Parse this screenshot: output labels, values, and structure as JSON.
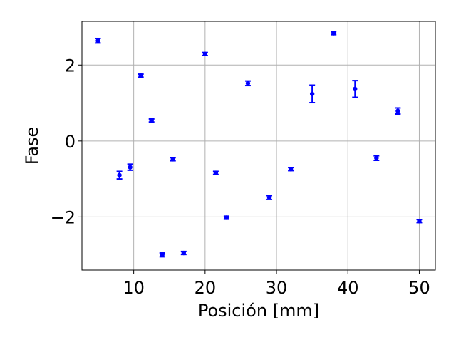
{
  "chart_data": {
    "type": "scatter",
    "xlabel": "Posición [mm]",
    "ylabel": "Fase",
    "xlim": [
      2.75,
      52.25
    ],
    "ylim": [
      -3.4,
      3.15
    ],
    "xticks": [
      10,
      20,
      30,
      40,
      50
    ],
    "xtick_labels": [
      "10",
      "20",
      "30",
      "40",
      "50"
    ],
    "yticks": [
      -2,
      0,
      2
    ],
    "ytick_labels": [
      "−2",
      "0",
      "2"
    ],
    "grid": true,
    "marker_color": "#0000ff",
    "points": [
      {
        "x": 5,
        "y": 2.64,
        "err": 0.06
      },
      {
        "x": 8,
        "y": -0.9,
        "err": 0.1
      },
      {
        "x": 9.5,
        "y": -0.69,
        "err": 0.08
      },
      {
        "x": 11,
        "y": 1.72,
        "err": 0.04
      },
      {
        "x": 12.5,
        "y": 0.54,
        "err": 0.04
      },
      {
        "x": 14,
        "y": -3.0,
        "err": 0.05
      },
      {
        "x": 15.5,
        "y": -0.48,
        "err": 0.04
      },
      {
        "x": 17,
        "y": -2.95,
        "err": 0.04
      },
      {
        "x": 20,
        "y": 2.29,
        "err": 0.04
      },
      {
        "x": 21.5,
        "y": -0.84,
        "err": 0.04
      },
      {
        "x": 23,
        "y": -2.02,
        "err": 0.04
      },
      {
        "x": 26,
        "y": 1.52,
        "err": 0.06
      },
      {
        "x": 29,
        "y": -1.49,
        "err": 0.05
      },
      {
        "x": 32,
        "y": -0.74,
        "err": 0.04
      },
      {
        "x": 35,
        "y": 1.24,
        "err": 0.23
      },
      {
        "x": 38,
        "y": 2.84,
        "err": 0.04
      },
      {
        "x": 41,
        "y": 1.37,
        "err": 0.22
      },
      {
        "x": 44,
        "y": -0.45,
        "err": 0.06
      },
      {
        "x": 47,
        "y": 0.79,
        "err": 0.08
      },
      {
        "x": 50,
        "y": -2.11,
        "err": 0.04
      }
    ]
  }
}
